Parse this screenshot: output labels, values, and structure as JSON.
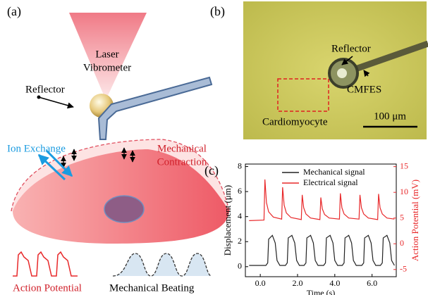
{
  "panel_a": {
    "label": "(a)",
    "laser": [
      "Laser",
      "Vibrometer"
    ],
    "reflector": "Reflector",
    "ion_exchange": "Ion Exchange",
    "contraction": [
      "Mechanical",
      "Contraction"
    ],
    "action_potential": "Action Potential",
    "beating": "Mechanical Beating"
  },
  "panel_b": {
    "label": "(b)",
    "reflector": "Reflector",
    "cmfes": "CMFES",
    "cell": "Cardiomyocyte",
    "scale": "100 μm"
  },
  "panel_c": {
    "label": "(c)"
  },
  "chart_data": {
    "type": "line",
    "x_label": "Time (s)",
    "y_label": "Displacement (μm)",
    "y2_label": "Action Potential (mV)",
    "xlim": [
      -0.8,
      7.3
    ],
    "xticks": [
      {
        "value": 0,
        "label": "0.0"
      },
      {
        "value": 2,
        "label": "2.0"
      },
      {
        "value": 4,
        "label": "4.0"
      },
      {
        "value": 6,
        "label": "6.0"
      }
    ],
    "ylim": [
      -0.8,
      8.2
    ],
    "yticks": [
      0,
      2,
      4,
      6,
      8
    ],
    "y2lim": [
      -6.4,
      15.5
    ],
    "y2ticks": [
      15,
      10,
      5,
      0,
      -5
    ],
    "series": [
      {
        "name": "Mechanical signal",
        "color": "#222222",
        "axis": "y",
        "x": [
          -0.6,
          0.3,
          0.4,
          0.45,
          0.65,
          0.8,
          0.9,
          1.05,
          1.35,
          1.45,
          1.5,
          1.7,
          1.85,
          1.95,
          2.1,
          2.35,
          2.45,
          2.5,
          2.7,
          2.85,
          2.95,
          3.1,
          3.4,
          3.5,
          3.55,
          3.75,
          3.9,
          4.0,
          4.15,
          4.4,
          4.5,
          4.55,
          4.75,
          4.9,
          5.0,
          5.15,
          5.45,
          5.55,
          5.6,
          5.8,
          5.95,
          6.05,
          6.2,
          6.45,
          6.55,
          6.6,
          6.8,
          6.95,
          7.05,
          7.2
        ],
        "values": [
          0.1,
          0.1,
          0.3,
          2.2,
          2.5,
          1.9,
          0.5,
          0.1,
          0.1,
          0.3,
          2.3,
          2.5,
          1.9,
          0.5,
          0.1,
          0.1,
          0.3,
          2.3,
          2.5,
          1.9,
          0.5,
          0.1,
          0.1,
          0.3,
          2.3,
          2.5,
          1.9,
          0.5,
          0.1,
          0.1,
          0.3,
          2.3,
          2.5,
          1.9,
          0.5,
          0.1,
          0.1,
          0.3,
          2.3,
          2.5,
          1.9,
          0.5,
          0.1,
          0.1,
          0.3,
          2.3,
          2.5,
          1.9,
          0.5,
          0.1
        ]
      },
      {
        "name": "Electrical signal",
        "color": "#e8282a",
        "axis": "y2",
        "x": [
          -0.6,
          0.2,
          0.25,
          0.33,
          0.45,
          0.7,
          1.15,
          1.2,
          1.28,
          1.4,
          1.65,
          2.2,
          2.25,
          2.33,
          2.45,
          2.7,
          3.2,
          3.25,
          3.33,
          3.45,
          3.7,
          4.25,
          4.3,
          4.38,
          4.5,
          4.75,
          5.3,
          5.35,
          5.43,
          5.55,
          5.8,
          6.3,
          6.35,
          6.43,
          6.55,
          6.8,
          7.2
        ],
        "values": [
          4.5,
          4.6,
          12.5,
          8,
          6.2,
          5.2,
          4.8,
          11,
          7.5,
          6,
          5.1,
          4.7,
          9.5,
          7,
          5.8,
          5,
          4.7,
          9,
          6.8,
          5.7,
          5,
          4.8,
          9.8,
          7,
          5.8,
          5,
          4.8,
          9.5,
          7,
          5.8,
          5,
          4.7,
          9.7,
          7,
          5.8,
          5,
          4.8
        ]
      }
    ]
  }
}
